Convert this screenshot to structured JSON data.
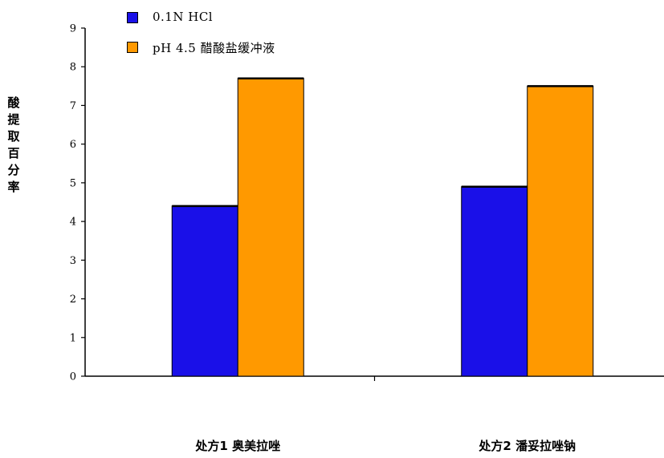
{
  "chart_data": {
    "type": "bar",
    "ylabel": "酸提取百分率",
    "xlabel": "",
    "ylim": [
      0,
      9
    ],
    "yticks": [
      "0",
      "1",
      "2",
      "3",
      "4",
      "5",
      "6",
      "7",
      "8",
      "9"
    ],
    "categories": [
      "处方1 奥美拉唑",
      "处方2 潘妥拉唑钠"
    ],
    "series": [
      {
        "name": "0.1N HCl",
        "color": "#1a10e8",
        "values": [
          4.4,
          4.9
        ]
      },
      {
        "name": "pH 4.5 醋酸盐缓冲液",
        "color": "#ff9900",
        "values": [
          7.7,
          7.5
        ]
      }
    ],
    "legend": "top-left",
    "grid": false
  }
}
